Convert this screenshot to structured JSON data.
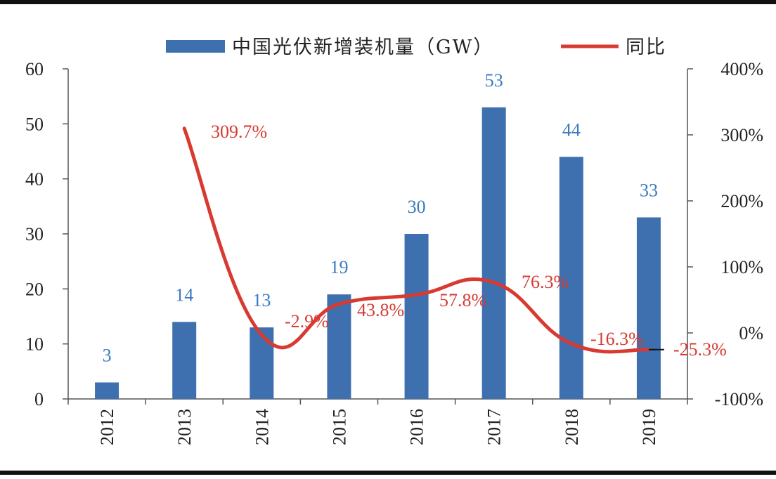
{
  "chart_data": {
    "type": "bar",
    "categories": [
      "2012",
      "2013",
      "2014",
      "2015",
      "2016",
      "2017",
      "2018",
      "2019"
    ],
    "series": [
      {
        "name": "中国光伏新增装机量（GW）",
        "type": "bar",
        "axis": "left",
        "color": "#3e6fae",
        "values": [
          3,
          14,
          13,
          19,
          30,
          53,
          44,
          33
        ],
        "labels": [
          "3",
          "14",
          "13",
          "19",
          "30",
          "53",
          "44",
          "33"
        ]
      },
      {
        "name": "同比",
        "type": "line",
        "axis": "right",
        "color": "#d83a32",
        "values": [
          null,
          309.7,
          -2.9,
          43.8,
          57.8,
          76.3,
          -16.3,
          -25.3
        ],
        "labels": [
          "",
          "309.7%",
          "-2.9%",
          "43.8%",
          "57.8%",
          "76.3%",
          "-16.3%",
          "-25.3%"
        ]
      }
    ],
    "y_left": {
      "ylim": [
        0,
        60
      ],
      "ticks": [
        "0",
        "10",
        "20",
        "30",
        "40",
        "50",
        "60"
      ]
    },
    "y_right": {
      "ylim": [
        -100,
        400
      ],
      "ticks": [
        "-100%",
        "0%",
        "100%",
        "200%",
        "300%",
        "400%"
      ]
    },
    "legend": {
      "position": "top",
      "items": [
        "中国光伏新增装机量（GW）",
        "同比"
      ]
    },
    "grid": false,
    "bar_color": "#3e6fae",
    "line_color": "#d83a32",
    "bar_label_color": "#3a7ac0"
  }
}
